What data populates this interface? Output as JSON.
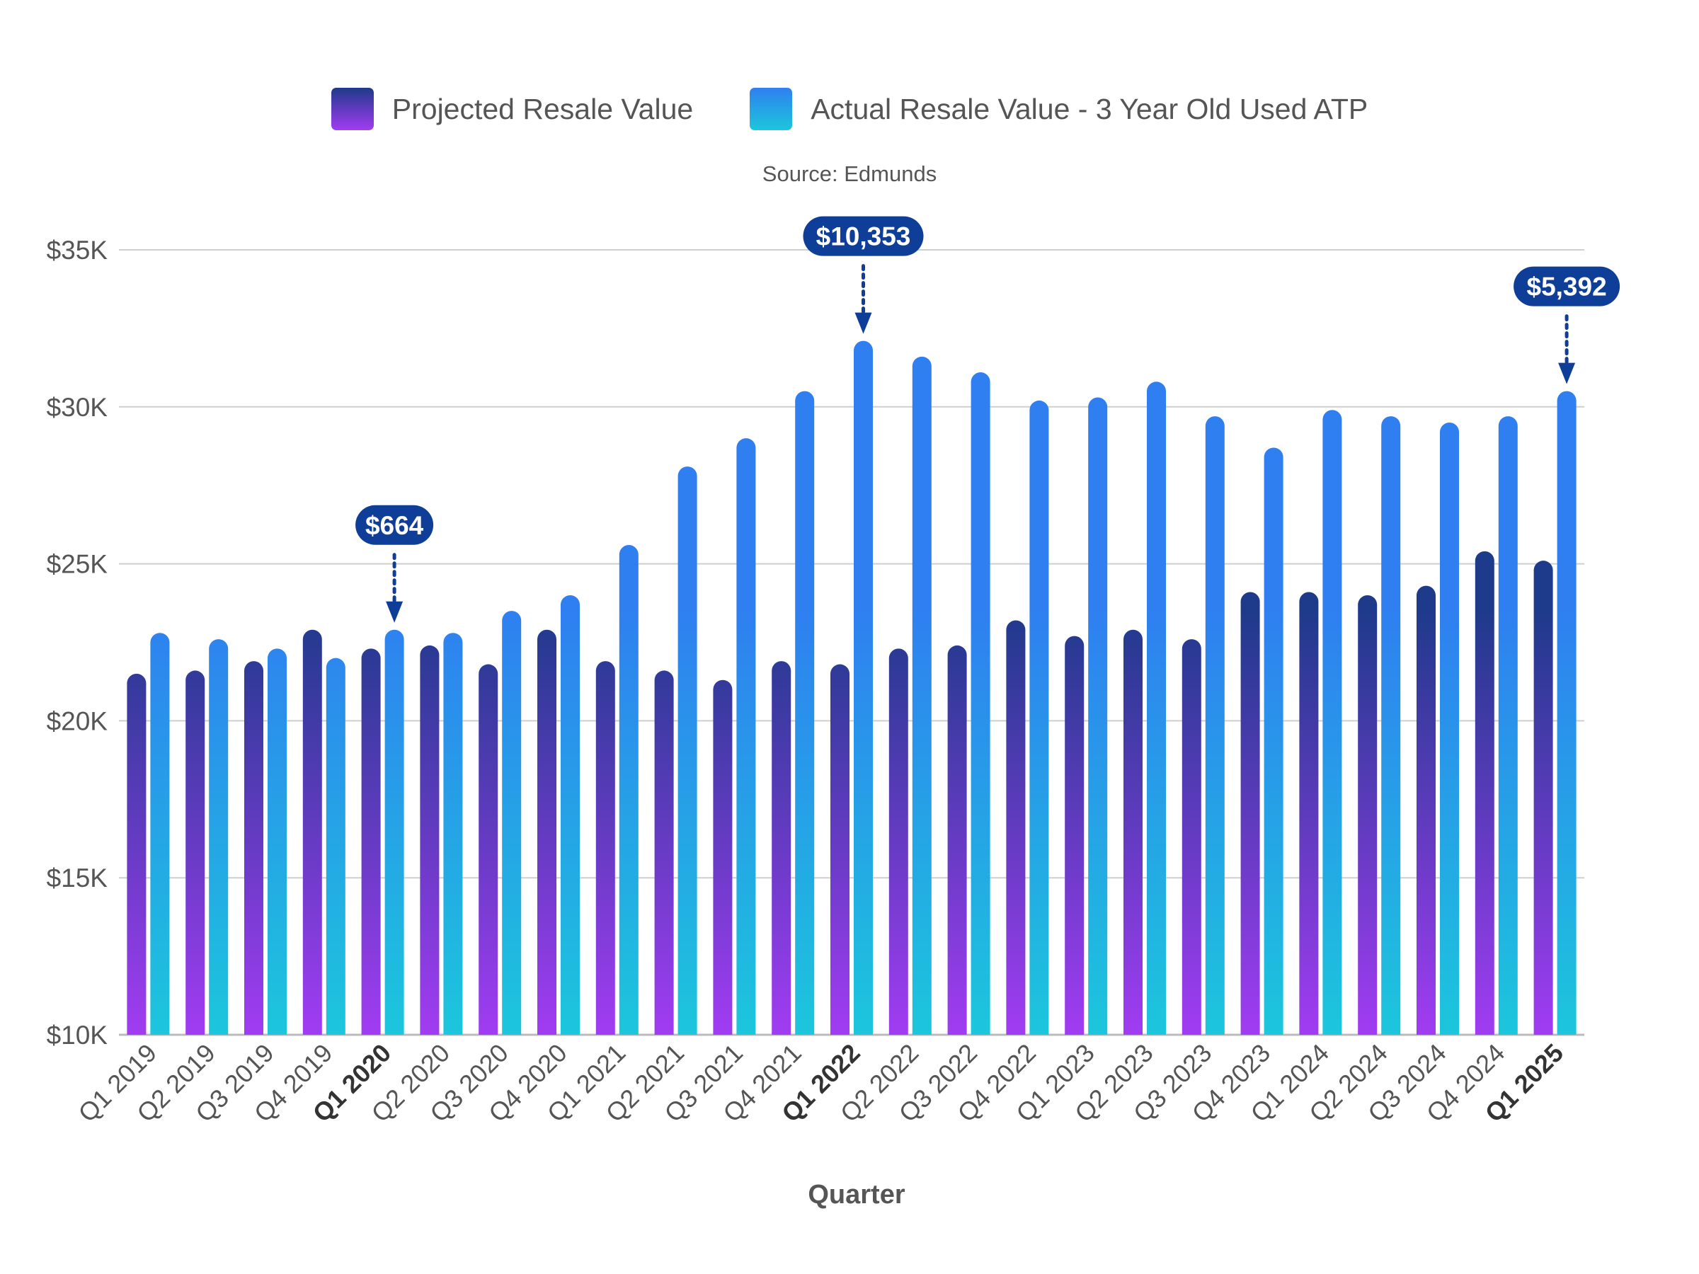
{
  "source": "Source: Edmunds",
  "chart_data": {
    "type": "bar",
    "title": "",
    "xlabel": "Quarter",
    "ylabel": "",
    "ylim": [
      10000,
      35000
    ],
    "yticks": [
      10000,
      15000,
      20000,
      25000,
      30000,
      35000
    ],
    "ytick_labels": [
      "$10K",
      "$15K",
      "$20K",
      "$25K",
      "$30K",
      "$35K"
    ],
    "grid": true,
    "legend_position": "top-center",
    "categories": [
      "Q1 2019",
      "Q2 2019",
      "Q3 2019",
      "Q4 2019",
      "Q1 2020",
      "Q2 2020",
      "Q3 2020",
      "Q4 2020",
      "Q1 2021",
      "Q2 2021",
      "Q3 2021",
      "Q4 2021",
      "Q1 2022",
      "Q2 2022",
      "Q3 2022",
      "Q4 2022",
      "Q1 2023",
      "Q2 2023",
      "Q3 2023",
      "Q4 2023",
      "Q1 2024",
      "Q2 2024",
      "Q3 2024",
      "Q4 2024",
      "Q1 2025"
    ],
    "bold_categories": [
      "Q1 2020",
      "Q1 2022",
      "Q1 2025"
    ],
    "series": [
      {
        "name": "Projected Resale Value",
        "colors": [
          "#1e3a8a",
          "#a13cf2"
        ],
        "values": [
          21500,
          21600,
          21900,
          22900,
          22300,
          22400,
          21800,
          22900,
          21900,
          21600,
          21300,
          21900,
          21800,
          22300,
          22400,
          23200,
          22700,
          22900,
          22600,
          24100,
          24100,
          24000,
          24300,
          25400,
          25100
        ]
      },
      {
        "name": "Actual Resale Value - 3 Year Old Used ATP",
        "colors": [
          "#2f7ff0",
          "#1cc6dc"
        ],
        "values": [
          22800,
          22600,
          22300,
          22000,
          22900,
          22800,
          23500,
          24000,
          25600,
          28100,
          29000,
          30500,
          32100,
          31600,
          31100,
          30200,
          30300,
          30800,
          29700,
          28700,
          29900,
          29700,
          29500,
          29700,
          30500
        ]
      }
    ],
    "annotations": [
      {
        "label": "$664",
        "category": "Q1 2020"
      },
      {
        "label": "$10,353",
        "category": "Q1 2022"
      },
      {
        "label": "$5,392",
        "category": "Q1 2025"
      }
    ]
  }
}
